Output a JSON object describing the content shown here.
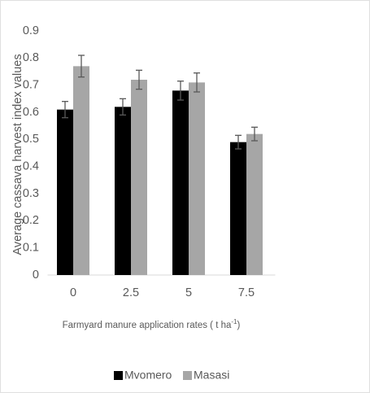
{
  "chart_data": {
    "type": "bar",
    "ylabel": "Average cassava harvest index values",
    "xlabel": "Farmyard manure application rates ( t ha",
    "xlabel_sup": "-1",
    "xlabel_end": ")",
    "categories": [
      "0",
      "2.5",
      "5",
      "7.5"
    ],
    "series": [
      {
        "name": "Mvomero",
        "color": "#000000",
        "values": [
          0.61,
          0.62,
          0.68,
          0.49
        ],
        "errors": [
          0.03,
          0.03,
          0.035,
          0.025
        ]
      },
      {
        "name": "Masasi",
        "color": "#a6a6a6",
        "values": [
          0.77,
          0.72,
          0.71,
          0.52
        ],
        "errors": [
          0.04,
          0.035,
          0.035,
          0.025
        ]
      }
    ],
    "ylim": [
      0,
      0.9
    ],
    "yticks": [
      0,
      0.1,
      0.2,
      0.3,
      0.4,
      0.5,
      0.6,
      0.7,
      0.8,
      0.9
    ],
    "legend": "bottom"
  }
}
